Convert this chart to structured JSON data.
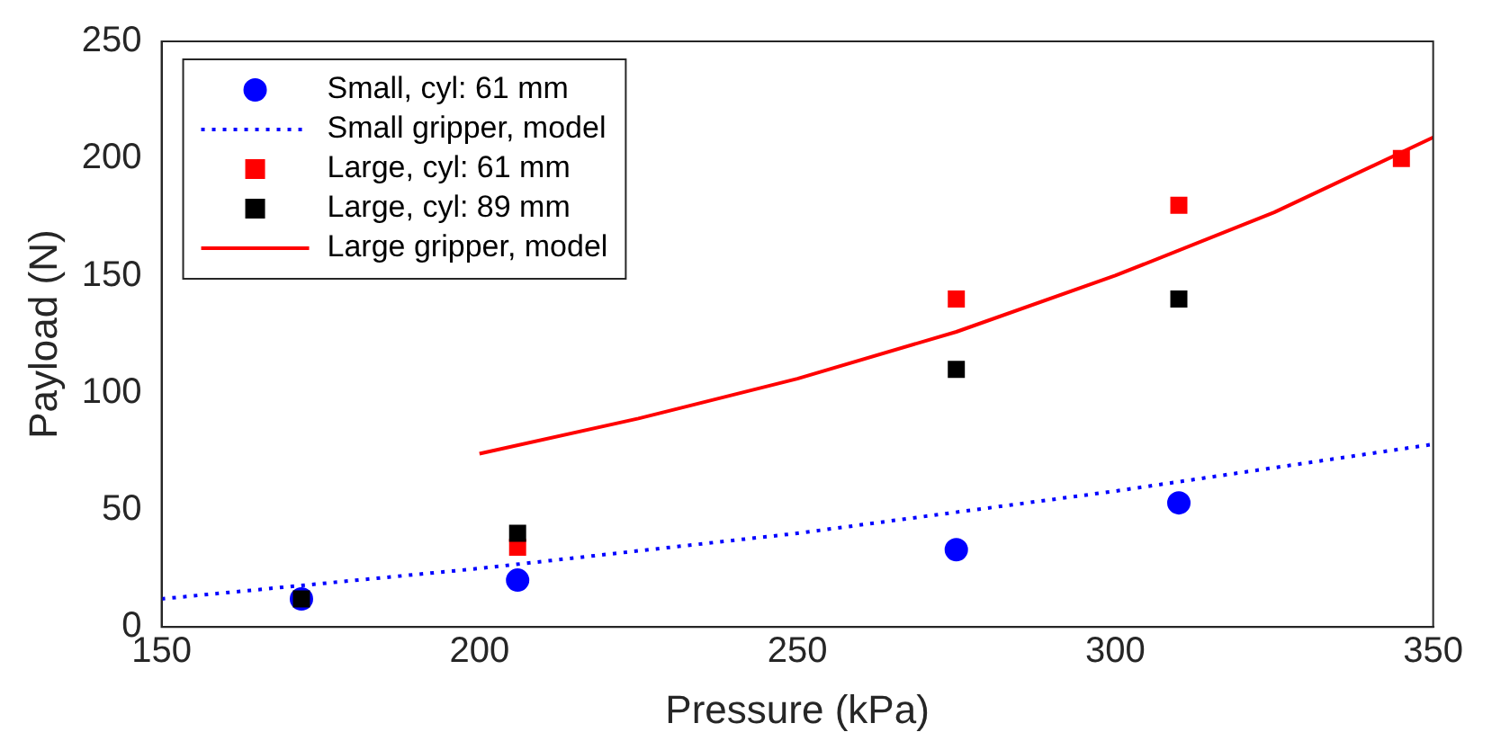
{
  "chart_data": {
    "type": "scatter",
    "xlabel": "Pressure (kPa)",
    "ylabel": "Payload (N)",
    "xlim": [
      150,
      350
    ],
    "xticks": [
      150,
      200,
      250,
      300,
      350
    ],
    "ylim": [
      0,
      250
    ],
    "yticks": [
      0,
      50,
      100,
      150,
      200,
      250
    ],
    "grid": false,
    "legend": "top left",
    "series": [
      {
        "name": "Small, cyl: 61 mm",
        "marker": "circle",
        "color": "#0000ff",
        "x": [
          172,
          206,
          275,
          310
        ],
        "values": [
          12,
          20,
          33,
          53
        ]
      },
      {
        "name": "Small gripper, model",
        "type": "line",
        "line_style": "dotted",
        "marker": "none",
        "color": "#0000ff",
        "x": [
          150,
          200,
          250,
          300,
          350
        ],
        "values": [
          12,
          25,
          40,
          58,
          78
        ]
      },
      {
        "name": "Large, cyl: 61 mm",
        "marker": "square",
        "color": "#ff0000",
        "x": [
          206,
          275,
          310,
          345
        ],
        "values": [
          34,
          140,
          180,
          200
        ]
      },
      {
        "name": "Large, cyl: 89 mm",
        "marker": "square",
        "color": "#000000",
        "x": [
          172,
          206,
          275,
          310
        ],
        "values": [
          12,
          40,
          110,
          140
        ]
      },
      {
        "name": "Large gripper, model",
        "type": "line",
        "line_style": "solid",
        "marker": "none",
        "color": "#ff0000",
        "x": [
          200,
          225,
          250,
          275,
          300,
          325,
          350
        ],
        "values": [
          74,
          89,
          106,
          126,
          150,
          177,
          209
        ]
      }
    ]
  }
}
